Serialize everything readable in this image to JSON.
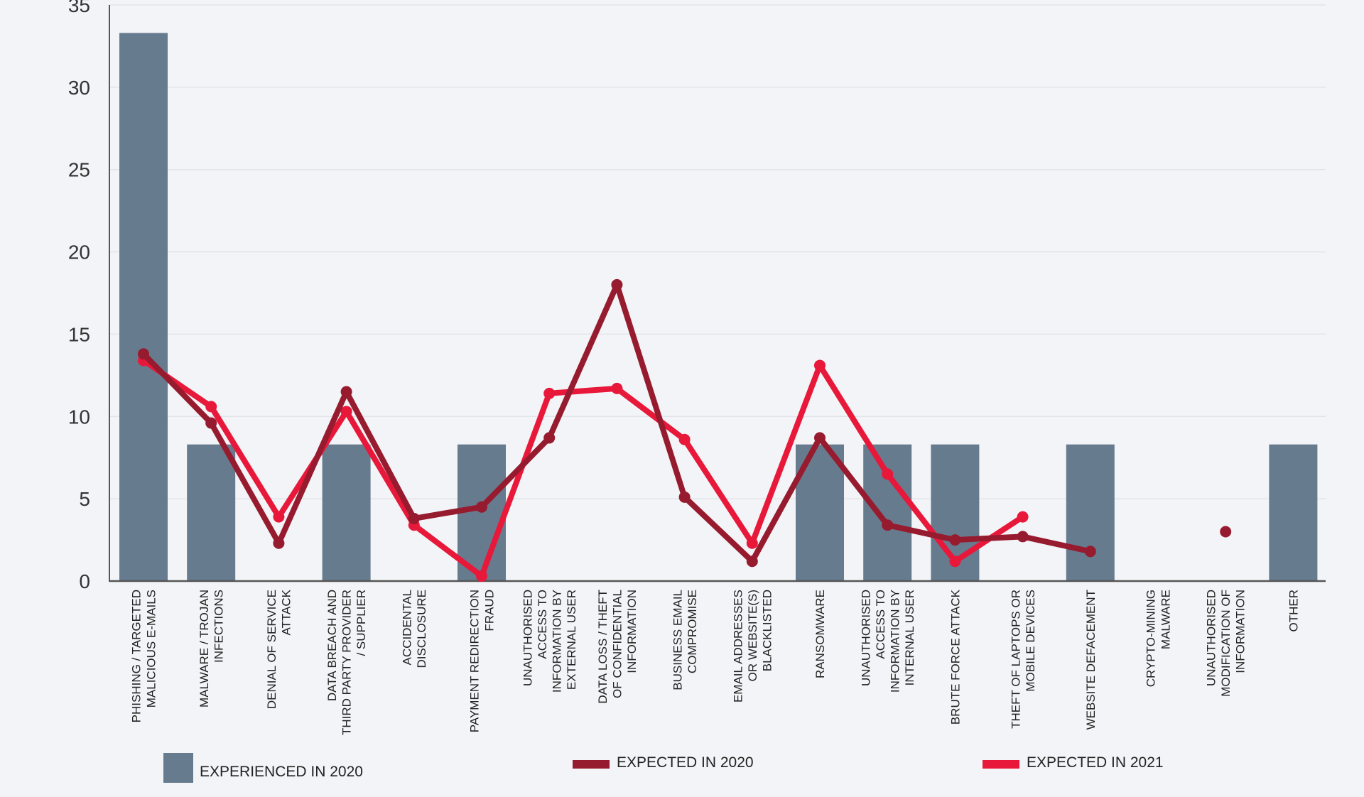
{
  "chart_data": {
    "type": "bar",
    "title": "",
    "xlabel": "",
    "ylabel": "",
    "ylim": [
      0,
      35
    ],
    "yticks": [
      0,
      5,
      10,
      15,
      20,
      25,
      30,
      35
    ],
    "grid": true,
    "legend_position": "bottom",
    "categories": [
      [
        "PHISHING / TARGETED",
        "MALICIOUS E-MAILS"
      ],
      [
        "MALWARE / TROJAN",
        "INFECTIONS"
      ],
      [
        "DENIAL OF SERVICE",
        "ATTACK"
      ],
      [
        "DATA BREACH AND",
        "THIRD PARTY PROVIDER",
        "/ SUPPLIER"
      ],
      [
        "ACCIDENTAL",
        "DISCLOSURE"
      ],
      [
        "PAYMENT REDIRECTION",
        "FRAUD"
      ],
      [
        "UNAUTHORISED",
        "ACCESS TO",
        "INFORMATION BY",
        "EXTERNAL USER"
      ],
      [
        "DATA LOSS / THEFT",
        "OF CONFIDENTIAL",
        "INFORMATION"
      ],
      [
        "BUSINESS EMAIL",
        "COMPROMISE"
      ],
      [
        "EMAIL ADDRESSES",
        "OR WEBSITE(S)",
        "BLACKLISTED"
      ],
      [
        "RANSOMWARE"
      ],
      [
        "UNAUTHORISED",
        "ACCESS TO",
        "INFORMATION BY",
        "INTERNAL USER"
      ],
      [
        "BRUTE FORCE ATTACK"
      ],
      [
        "THEFT OF LAPTOPS OR",
        "MOBILE DEVICES"
      ],
      [
        "WEBSITE DEFACEMENT"
      ],
      [
        "CRYPTO-MINING",
        "MALWARE"
      ],
      [
        "UNAUTHORISED",
        "MODIFICATION OF",
        "INFORMATION"
      ],
      [
        "OTHER"
      ]
    ],
    "series": [
      {
        "name": "EXPERIENCED IN 2020",
        "type": "bar",
        "color": "#677b8f",
        "values": [
          33.3,
          8.3,
          0,
          8.3,
          0,
          8.3,
          0,
          0,
          0,
          0,
          8.3,
          8.3,
          8.3,
          0,
          8.3,
          0,
          0,
          8.3
        ]
      },
      {
        "name": "EXPECTED IN 2020",
        "type": "line",
        "color": "#971b2f",
        "values": [
          13.8,
          9.6,
          2.3,
          11.5,
          3.8,
          4.5,
          8.7,
          18.0,
          5.1,
          1.2,
          8.7,
          3.4,
          2.5,
          2.7,
          1.8,
          null,
          3.0,
          null
        ]
      },
      {
        "name": "EXPECTED IN 2021",
        "type": "line",
        "color": "#e8183a",
        "values": [
          13.4,
          10.6,
          3.9,
          10.3,
          3.4,
          0.3,
          11.4,
          11.7,
          8.6,
          2.3,
          13.1,
          6.5,
          1.2,
          3.9,
          null,
          null,
          null,
          null
        ]
      }
    ]
  }
}
